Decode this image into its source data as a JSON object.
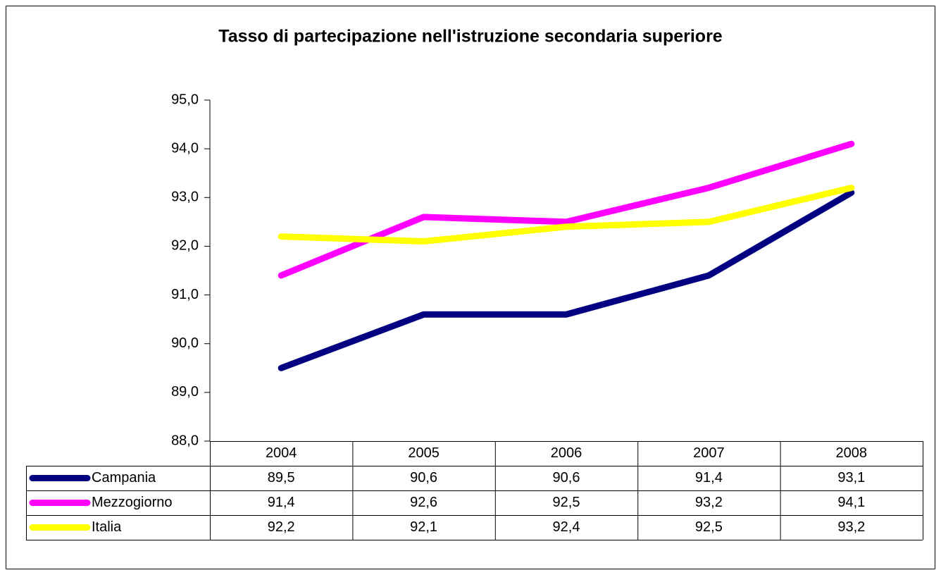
{
  "chart_data": {
    "type": "line",
    "title": "Tasso di partecipazione nell'istruzione secondaria superiore",
    "categories": [
      "2004",
      "2005",
      "2006",
      "2007",
      "2008"
    ],
    "series": [
      {
        "name": "Campania",
        "color": "#000080",
        "values": [
          89.5,
          90.6,
          90.6,
          91.4,
          93.1
        ],
        "value_labels": [
          "89,5",
          "90,6",
          "90,6",
          "91,4",
          "93,1"
        ]
      },
      {
        "name": "Mezzogiorno",
        "color": "#ff00ff",
        "values": [
          91.4,
          92.6,
          92.5,
          93.2,
          94.1
        ],
        "value_labels": [
          "91,4",
          "92,6",
          "92,5",
          "93,2",
          "94,1"
        ]
      },
      {
        "name": "Italia",
        "color": "#ffff00",
        "values": [
          92.2,
          92.1,
          92.4,
          92.5,
          93.2
        ],
        "value_labels": [
          "92,2",
          "92,1",
          "92,4",
          "92,5",
          "93,2"
        ]
      }
    ],
    "ylim": [
      88,
      95
    ],
    "yticks": [
      {
        "value": 88,
        "label": "88,0"
      },
      {
        "value": 89,
        "label": "89,0"
      },
      {
        "value": 90,
        "label": "90,0"
      },
      {
        "value": 91,
        "label": "91,0"
      },
      {
        "value": 92,
        "label": "92,0"
      },
      {
        "value": 93,
        "label": "93,0"
      },
      {
        "value": 94,
        "label": "94,0"
      },
      {
        "value": 95,
        "label": "95,0"
      }
    ],
    "grid": false
  }
}
